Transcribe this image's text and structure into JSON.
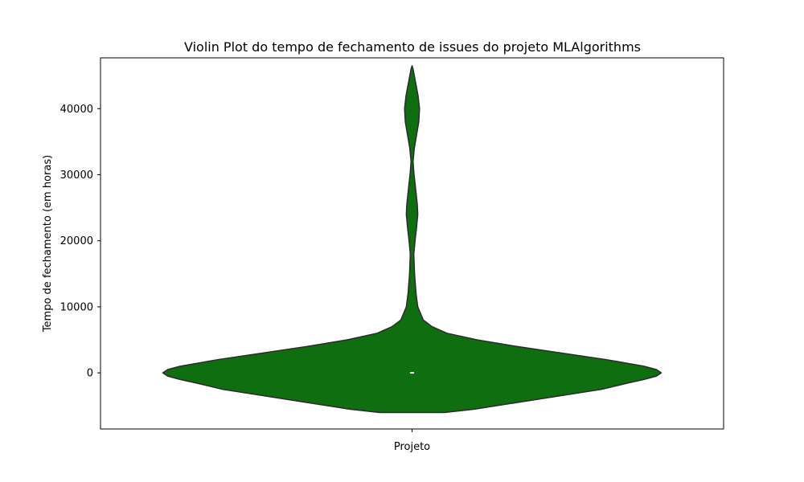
{
  "chart_data": {
    "type": "violin",
    "title": "Violin Plot do tempo de fechamento de issues do projeto MLAlgorithms",
    "xlabel": "",
    "ylabel": "Tempo de fechamento (em horas)",
    "categories": [
      "Projeto"
    ],
    "ylim": [
      -8500,
      47700
    ],
    "yticks": [
      0,
      10000,
      20000,
      30000,
      40000
    ],
    "ytick_labels": [
      "0",
      "10000",
      "20000",
      "30000",
      "40000"
    ],
    "grid": false,
    "fill_color": "#0f6e0f",
    "edge_color": "#2b2b2b",
    "median": 0,
    "density_profile": [
      {
        "y": -6000,
        "w": 0.13
      },
      {
        "y": -5500,
        "w": 0.25
      },
      {
        "y": -4500,
        "w": 0.42
      },
      {
        "y": -3500,
        "w": 0.59
      },
      {
        "y": -2500,
        "w": 0.76
      },
      {
        "y": -1500,
        "w": 0.87
      },
      {
        "y": -1000,
        "w": 0.93
      },
      {
        "y": -500,
        "w": 0.98
      },
      {
        "y": 0,
        "w": 1.0
      },
      {
        "y": 500,
        "w": 0.98
      },
      {
        "y": 1000,
        "w": 0.93
      },
      {
        "y": 2000,
        "w": 0.78
      },
      {
        "y": 3000,
        "w": 0.6
      },
      {
        "y": 4000,
        "w": 0.42
      },
      {
        "y": 5000,
        "w": 0.26
      },
      {
        "y": 6000,
        "w": 0.14
      },
      {
        "y": 7000,
        "w": 0.08
      },
      {
        "y": 8000,
        "w": 0.045
      },
      {
        "y": 10000,
        "w": 0.023
      },
      {
        "y": 12000,
        "w": 0.016
      },
      {
        "y": 15000,
        "w": 0.01
      },
      {
        "y": 18000,
        "w": 0.007
      },
      {
        "y": 20000,
        "w": 0.012
      },
      {
        "y": 22000,
        "w": 0.018
      },
      {
        "y": 24000,
        "w": 0.023
      },
      {
        "y": 25500,
        "w": 0.021
      },
      {
        "y": 28000,
        "w": 0.014
      },
      {
        "y": 30000,
        "w": 0.008
      },
      {
        "y": 32000,
        "w": 0.004
      },
      {
        "y": 34000,
        "w": 0.009
      },
      {
        "y": 36000,
        "w": 0.018
      },
      {
        "y": 38000,
        "w": 0.027
      },
      {
        "y": 40000,
        "w": 0.03
      },
      {
        "y": 42000,
        "w": 0.024
      },
      {
        "y": 44000,
        "w": 0.014
      },
      {
        "y": 46000,
        "w": 0.004
      },
      {
        "y": 46500,
        "w": 0.0
      }
    ]
  }
}
